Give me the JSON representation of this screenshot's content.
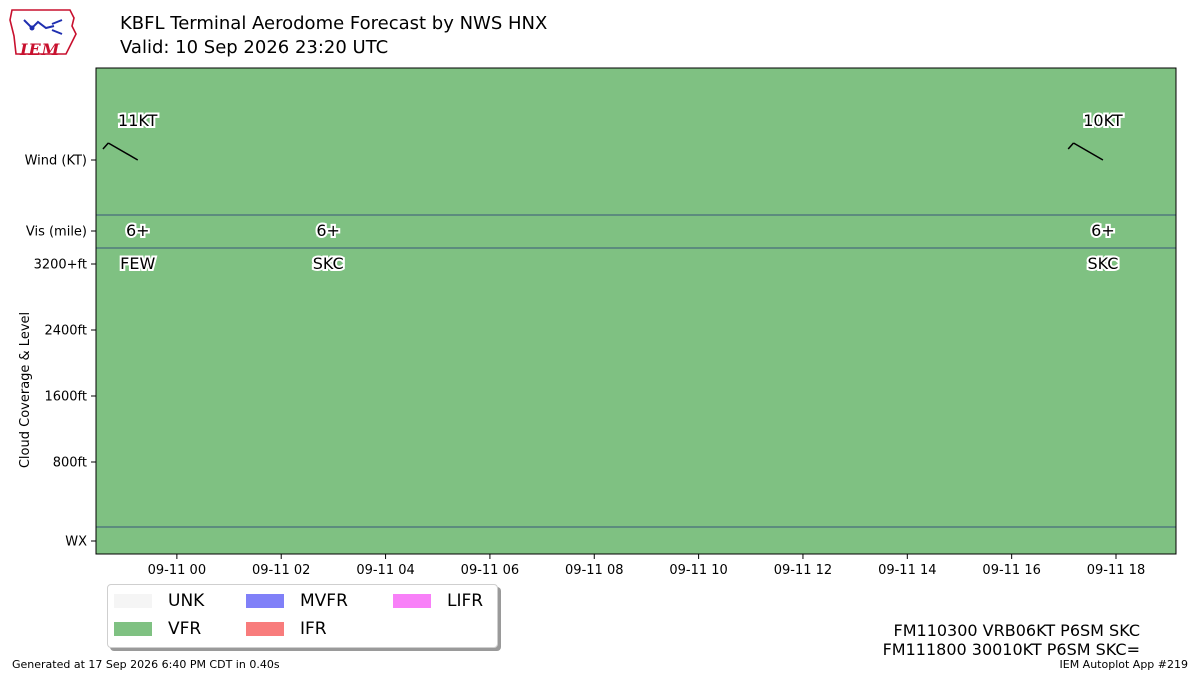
{
  "header": {
    "title_line1": "KBFL Terminal Aerodome Forecast by NWS HNX",
    "title_line2": "Valid: 10 Sep 2026 23:20 UTC",
    "logo_text": "IEM"
  },
  "chart_data": {
    "type": "timeline",
    "background_category": "VFR",
    "y_labels": [
      "Wind (KT)",
      "Vis (mile)",
      "3200+ft",
      "2400ft",
      "1600ft",
      "800ft",
      "WX"
    ],
    "y_axis_title": "Cloud Coverage & Level",
    "x_tick_labels": [
      "09-11 00",
      "09-11 02",
      "09-11 04",
      "09-11 06",
      "09-11 08",
      "09-11 10",
      "09-11 12",
      "09-11 14",
      "09-11 16",
      "09-11 18"
    ],
    "x_range_hours": [
      -1.55,
      19.15
    ],
    "wind": [
      {
        "hour": -0.75,
        "label": "11KT",
        "direction_deg": 300,
        "speed_kt": 11
      },
      {
        "hour": 17.75,
        "label": "10KT",
        "direction_deg": 300,
        "speed_kt": 10
      }
    ],
    "visibility": [
      {
        "hour": -0.75,
        "label": "6+"
      },
      {
        "hour": 2.9,
        "label": "6+"
      },
      {
        "hour": 17.75,
        "label": "6+"
      }
    ],
    "clouds": [
      {
        "hour": -0.75,
        "label": "FEW"
      },
      {
        "hour": 2.9,
        "label": "SKC"
      },
      {
        "hour": 17.75,
        "label": "SKC"
      }
    ],
    "colors": {
      "UNK": "#f5f5f5",
      "VFR": "#7fc182",
      "MVFR": "#8080f8",
      "IFR": "#f87c7c",
      "LIFR": "#f880f8",
      "divider": "#39577a"
    }
  },
  "legend": [
    {
      "label": "UNK",
      "color": "#f5f5f5"
    },
    {
      "label": "VFR",
      "color": "#7fc182"
    },
    {
      "label": "MVFR",
      "color": "#8080f8"
    },
    {
      "label": "IFR",
      "color": "#f87c7c"
    },
    {
      "label": "LIFR",
      "color": "#f880f8"
    }
  ],
  "taf_lines": [
    "FM110300 VRB06KT P6SM SKC",
    "FM111800 30010KT P6SM SKC="
  ],
  "footer": {
    "generated": "Generated at 17 Sep 2026 6:40 PM CDT in 0.40s",
    "app": "IEM Autoplot App #219"
  }
}
